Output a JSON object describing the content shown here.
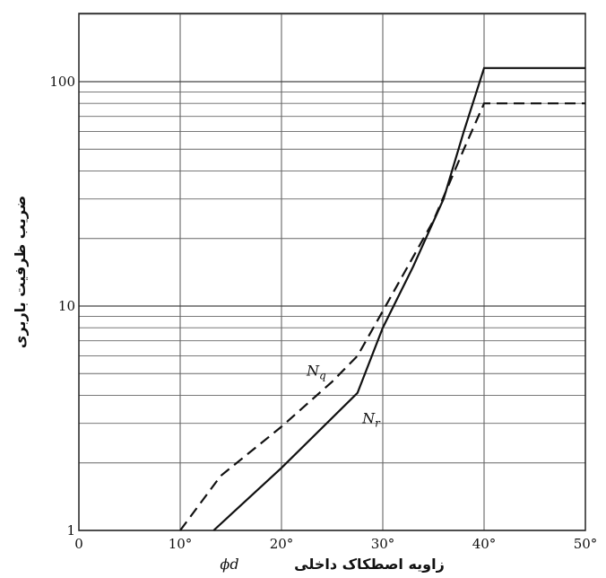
{
  "chart_data": {
    "type": "line",
    "xlabel": "زاویه اصطکاک داخلی",
    "xlabel_symbol": "ϕd",
    "ylabel": "ضریب ظرفیت باربری",
    "xlim": [
      0,
      50
    ],
    "ylim": [
      1,
      200
    ],
    "y_scale": "log",
    "grid": true,
    "x_ticks": [
      {
        "value": 0,
        "label": "0"
      },
      {
        "value": 10,
        "label": "10°"
      },
      {
        "value": 20,
        "label": "20°"
      },
      {
        "value": 30,
        "label": "30°"
      },
      {
        "value": 40,
        "label": "40°"
      },
      {
        "value": 50,
        "label": "50°"
      }
    ],
    "y_ticks": [
      {
        "value": 1,
        "label": "1"
      },
      {
        "value": 10,
        "label": "10"
      },
      {
        "value": 100,
        "label": "100"
      }
    ],
    "series": [
      {
        "name": "Nq",
        "style": "dashed",
        "x": [
          10,
          14,
          20,
          25,
          27.5,
          30,
          35,
          38,
          40,
          50
        ],
        "y": [
          1,
          1.75,
          2.9,
          4.6,
          6,
          9.5,
          24,
          50,
          80,
          80
        ]
      },
      {
        "name": "Nr",
        "style": "solid",
        "x": [
          13.3,
          20,
          27.5,
          30,
          33,
          36,
          38,
          40,
          50
        ],
        "y": [
          1,
          1.9,
          4.1,
          8,
          15,
          30,
          60,
          115,
          115
        ]
      }
    ]
  }
}
